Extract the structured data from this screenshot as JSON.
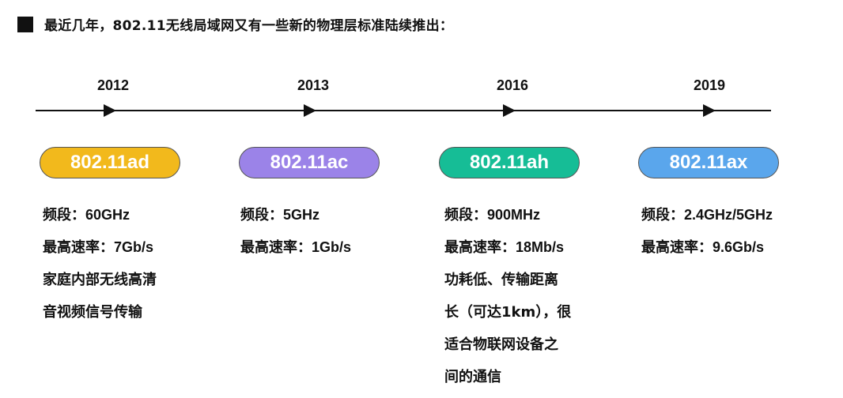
{
  "heading": {
    "text": "最近几年，802.11无线局域网又有一些新的物理层标准陆续推出："
  },
  "timeline": {
    "line_color": "#111111",
    "milestones": [
      {
        "year": "2012",
        "standard": "802.11ad",
        "color": "#F2B91C",
        "band_label": "频段：",
        "band": "60GHz",
        "rate_label": "最高速率：",
        "rate": "7Gb/s",
        "notes": [
          "家庭内部无线高清",
          "音视频信号传输"
        ]
      },
      {
        "year": "2013",
        "standard": "802.11ac",
        "color": "#9B83E8",
        "band_label": "频段：",
        "band": "5GHz",
        "rate_label": "最高速率：",
        "rate": "1Gb/s",
        "notes": []
      },
      {
        "year": "2016",
        "standard": "802.11ah",
        "color": "#16BD96",
        "band_label": "频段：",
        "band": "900MHz",
        "rate_label": "最高速率：",
        "rate": "18Mb/s",
        "notes": [
          "功耗低、传输距离",
          "长（可达1km），很",
          "适合物联网设备之",
          "间的通信"
        ]
      },
      {
        "year": "2019",
        "standard": "802.11ax",
        "color": "#5AA6EC",
        "band_label": "频段：",
        "band": "2.4GHz/5GHz",
        "rate_label": "最高速率：",
        "rate": "9.6Gb/s",
        "notes": []
      }
    ]
  }
}
